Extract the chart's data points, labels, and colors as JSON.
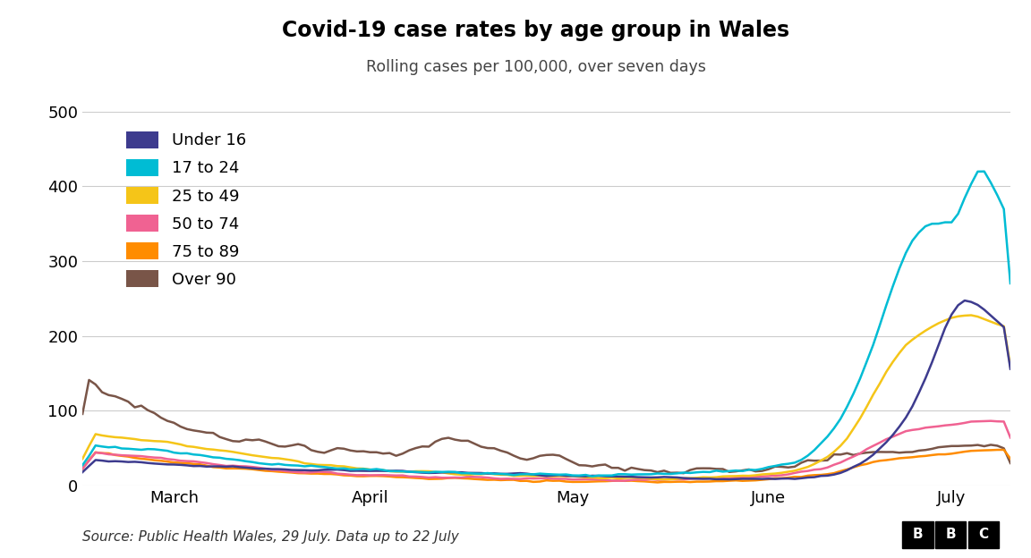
{
  "title": "Covid-19 case rates by age group in Wales",
  "subtitle": "Rolling cases per 100,000, over seven days",
  "source_text": "Source: Public Health Wales, 29 July. Data up to 22 July",
  "ylim": [
    0,
    500
  ],
  "yticks": [
    0,
    100,
    200,
    300,
    400,
    500
  ],
  "background_color": "#ffffff",
  "line_colors": {
    "under16": "#3d3b8e",
    "17to24": "#00bcd4",
    "25to49": "#f5c518",
    "50to74": "#f06292",
    "75to89": "#ff8c00",
    "over90": "#795548"
  },
  "legend_labels": [
    "Under 16",
    "17 to 24",
    "25 to 49",
    "50 to 74",
    "75 to 89",
    "Over 90"
  ],
  "x_tick_labels": [
    "March",
    "April",
    "May",
    "June",
    "July"
  ],
  "x_tick_pos": [
    14,
    44,
    75,
    105,
    133
  ],
  "n_points": 143
}
